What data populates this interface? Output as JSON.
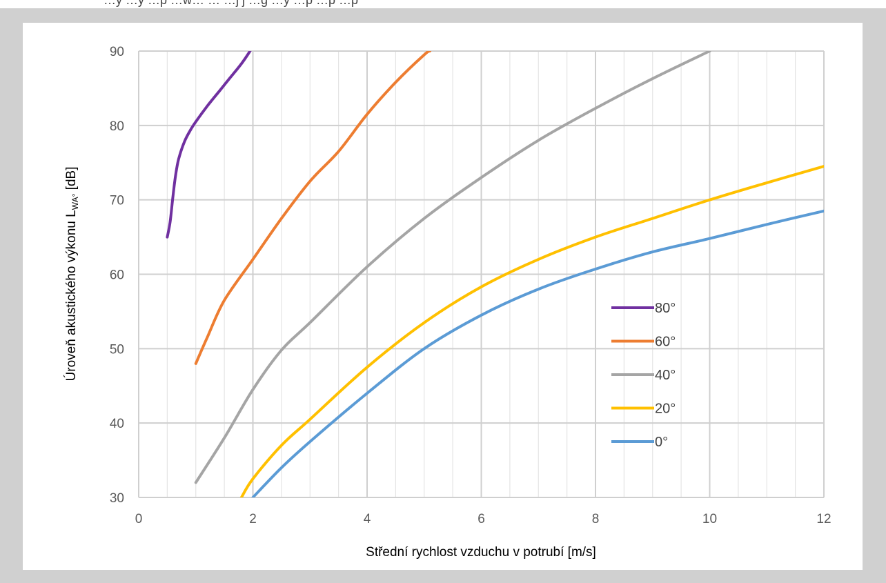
{
  "header_fragment": "…y  …y   …p  …w…  …   …j  j  …g  …y   …p  …p  …p",
  "chart_data": {
    "type": "line",
    "title": "",
    "xlabel": "Střední rychlost vzduchu v potrubí [m/s]",
    "ylabel": "Úroveň akustického výkonu L",
    "ylabel_sub": "WA°",
    "ylabel_unit": " [dB]",
    "xlim": [
      0,
      12
    ],
    "ylim": [
      30,
      90
    ],
    "xticks": [
      "0",
      "2",
      "4",
      "6",
      "8",
      "10",
      "12"
    ],
    "yticks": [
      "30",
      "40",
      "50",
      "60",
      "70",
      "80",
      "90"
    ],
    "x_minor_step": 0.5,
    "y_major_step": 10,
    "grid": true,
    "legend_position": "right-center",
    "series": [
      {
        "name": "80°",
        "color": "#7030A0",
        "points": [
          [
            0.5,
            65
          ],
          [
            0.55,
            67
          ],
          [
            0.6,
            70.5
          ],
          [
            0.65,
            73.5
          ],
          [
            0.7,
            75.5
          ],
          [
            0.8,
            77.8
          ],
          [
            0.9,
            79.3
          ],
          [
            1.0,
            80.5
          ],
          [
            1.2,
            82.6
          ],
          [
            1.4,
            84.5
          ],
          [
            1.6,
            86.4
          ],
          [
            1.8,
            88.3
          ],
          [
            1.95,
            90
          ]
        ]
      },
      {
        "name": "60°",
        "color": "#ED7D31",
        "points": [
          [
            1.0,
            48
          ],
          [
            1.2,
            51.5
          ],
          [
            1.5,
            56.5
          ],
          [
            2.0,
            62
          ],
          [
            2.5,
            67.5
          ],
          [
            3.0,
            72.5
          ],
          [
            3.5,
            76.5
          ],
          [
            4.0,
            81.5
          ],
          [
            4.5,
            85.8
          ],
          [
            5.0,
            89.5
          ],
          [
            5.1,
            90
          ]
        ]
      },
      {
        "name": "40°",
        "color": "#A5A5A5",
        "points": [
          [
            1.0,
            32
          ],
          [
            1.5,
            38
          ],
          [
            2.0,
            44.5
          ],
          [
            2.5,
            49.8
          ],
          [
            3.0,
            53.5
          ],
          [
            4.0,
            61
          ],
          [
            5.0,
            67.5
          ],
          [
            6.0,
            73
          ],
          [
            7.0,
            78
          ],
          [
            8.0,
            82.3
          ],
          [
            9.0,
            86.3
          ],
          [
            10.0,
            90
          ]
        ]
      },
      {
        "name": "20°",
        "color": "#FFC000",
        "points": [
          [
            1.8,
            30
          ],
          [
            2.0,
            32.5
          ],
          [
            2.5,
            37
          ],
          [
            3.0,
            40.5
          ],
          [
            4.0,
            47.5
          ],
          [
            5.0,
            53.5
          ],
          [
            6.0,
            58.3
          ],
          [
            7.0,
            62
          ],
          [
            8.0,
            65
          ],
          [
            9.0,
            67.5
          ],
          [
            10.0,
            70
          ],
          [
            11.0,
            72.3
          ],
          [
            12.0,
            74.5
          ]
        ]
      },
      {
        "name": "0°",
        "color": "#5B9BD5",
        "points": [
          [
            2.0,
            30
          ],
          [
            2.5,
            34
          ],
          [
            3.0,
            37.5
          ],
          [
            4.0,
            44
          ],
          [
            5.0,
            50
          ],
          [
            6.0,
            54.5
          ],
          [
            7.0,
            58
          ],
          [
            8.0,
            60.7
          ],
          [
            9.0,
            63
          ],
          [
            10.0,
            64.8
          ],
          [
            11.0,
            66.7
          ],
          [
            12.0,
            68.5
          ]
        ]
      }
    ]
  }
}
